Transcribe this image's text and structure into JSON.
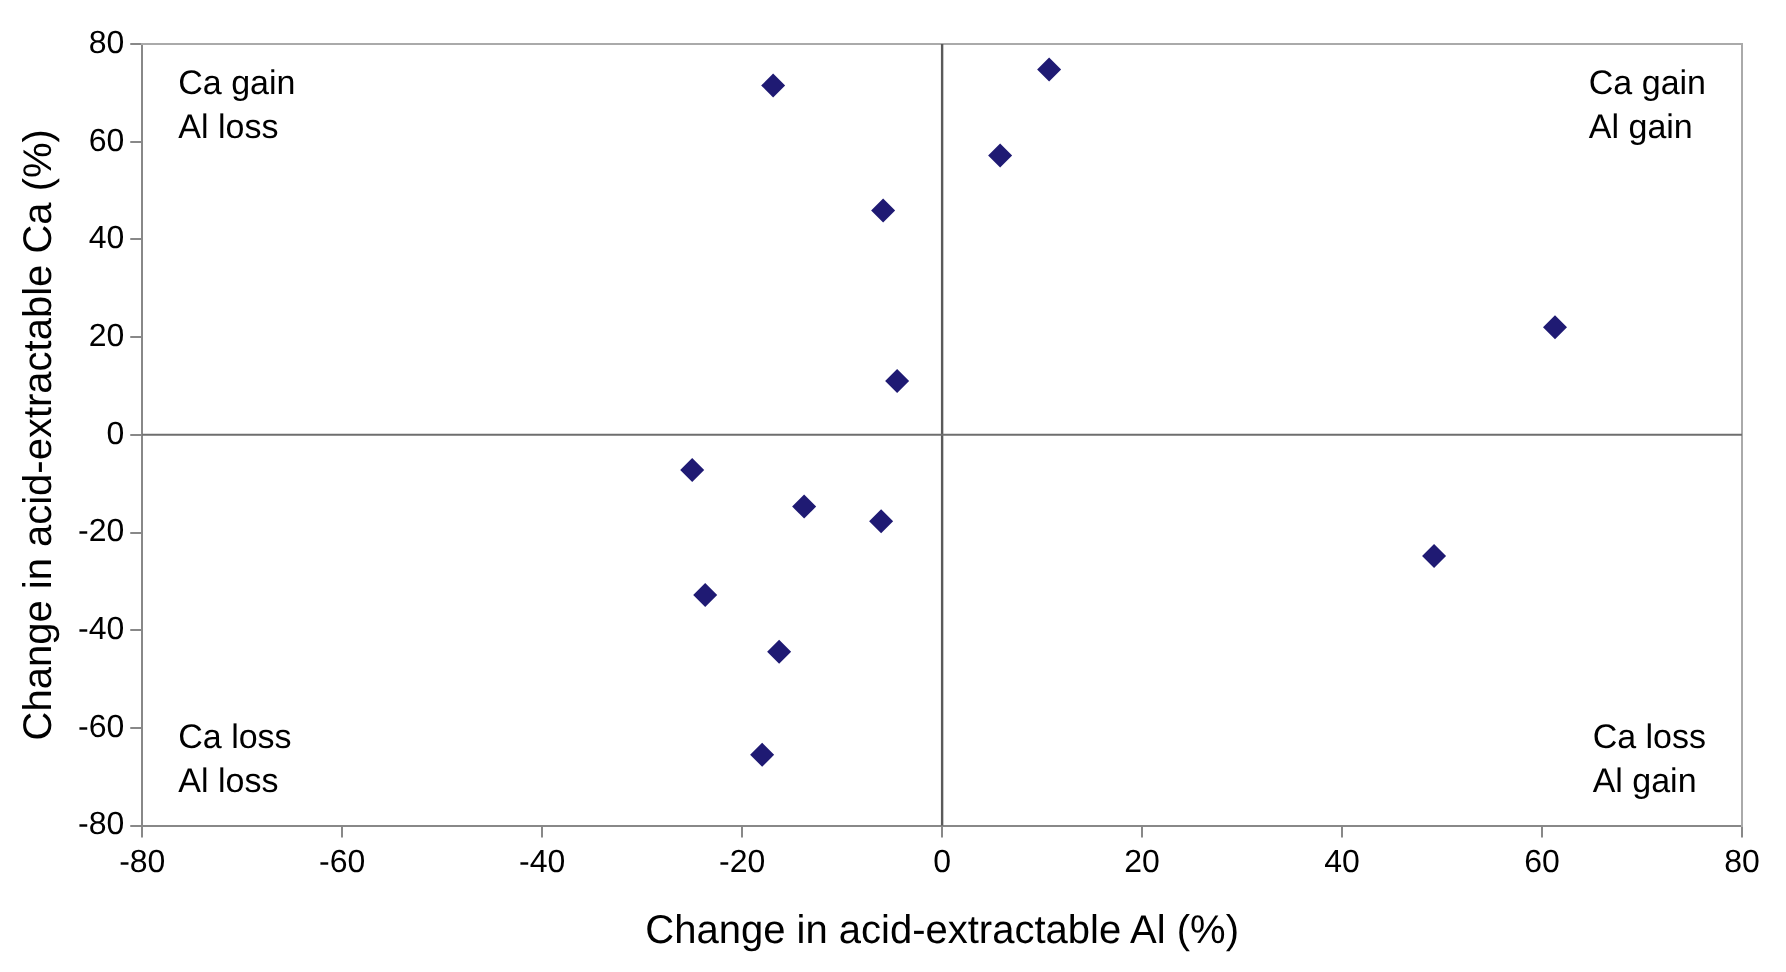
{
  "chart_data": {
    "type": "scatter",
    "xlabel": "Change in acid-extractable Al (%)",
    "ylabel": "Change in acid-extractable Ca (%)",
    "x": [
      -16.9,
      -5.9,
      -4.5,
      -25.0,
      -13.8,
      -6.1,
      -23.7,
      -16.3,
      -18.0,
      10.7,
      5.8,
      61.3,
      49.2
    ],
    "values": [
      71.5,
      45.9,
      11,
      -7.2,
      -14.7,
      -17.7,
      -32.8,
      -44.4,
      -65.5,
      74.8,
      57.2,
      22,
      -24.8
    ],
    "color": "#1f1a73",
    "marker": "diamond",
    "xlim": [
      -80,
      80
    ],
    "xticks": [
      -80,
      -60,
      -40,
      -20,
      0,
      20,
      40,
      60,
      80
    ],
    "ylim": [
      -80,
      80
    ],
    "yticks": [
      -80,
      -60,
      -40,
      -20,
      0,
      20,
      40,
      60,
      80
    ],
    "grid": false,
    "ref_lines": [
      {
        "axis": "x",
        "value": 0
      },
      {
        "axis": "y",
        "value": 0
      }
    ],
    "annotations": [
      "Ca gain\nAl loss",
      "Ca gain\nAl gain",
      "Ca loss\nAl loss",
      "Ca loss\nAl gain"
    ]
  }
}
